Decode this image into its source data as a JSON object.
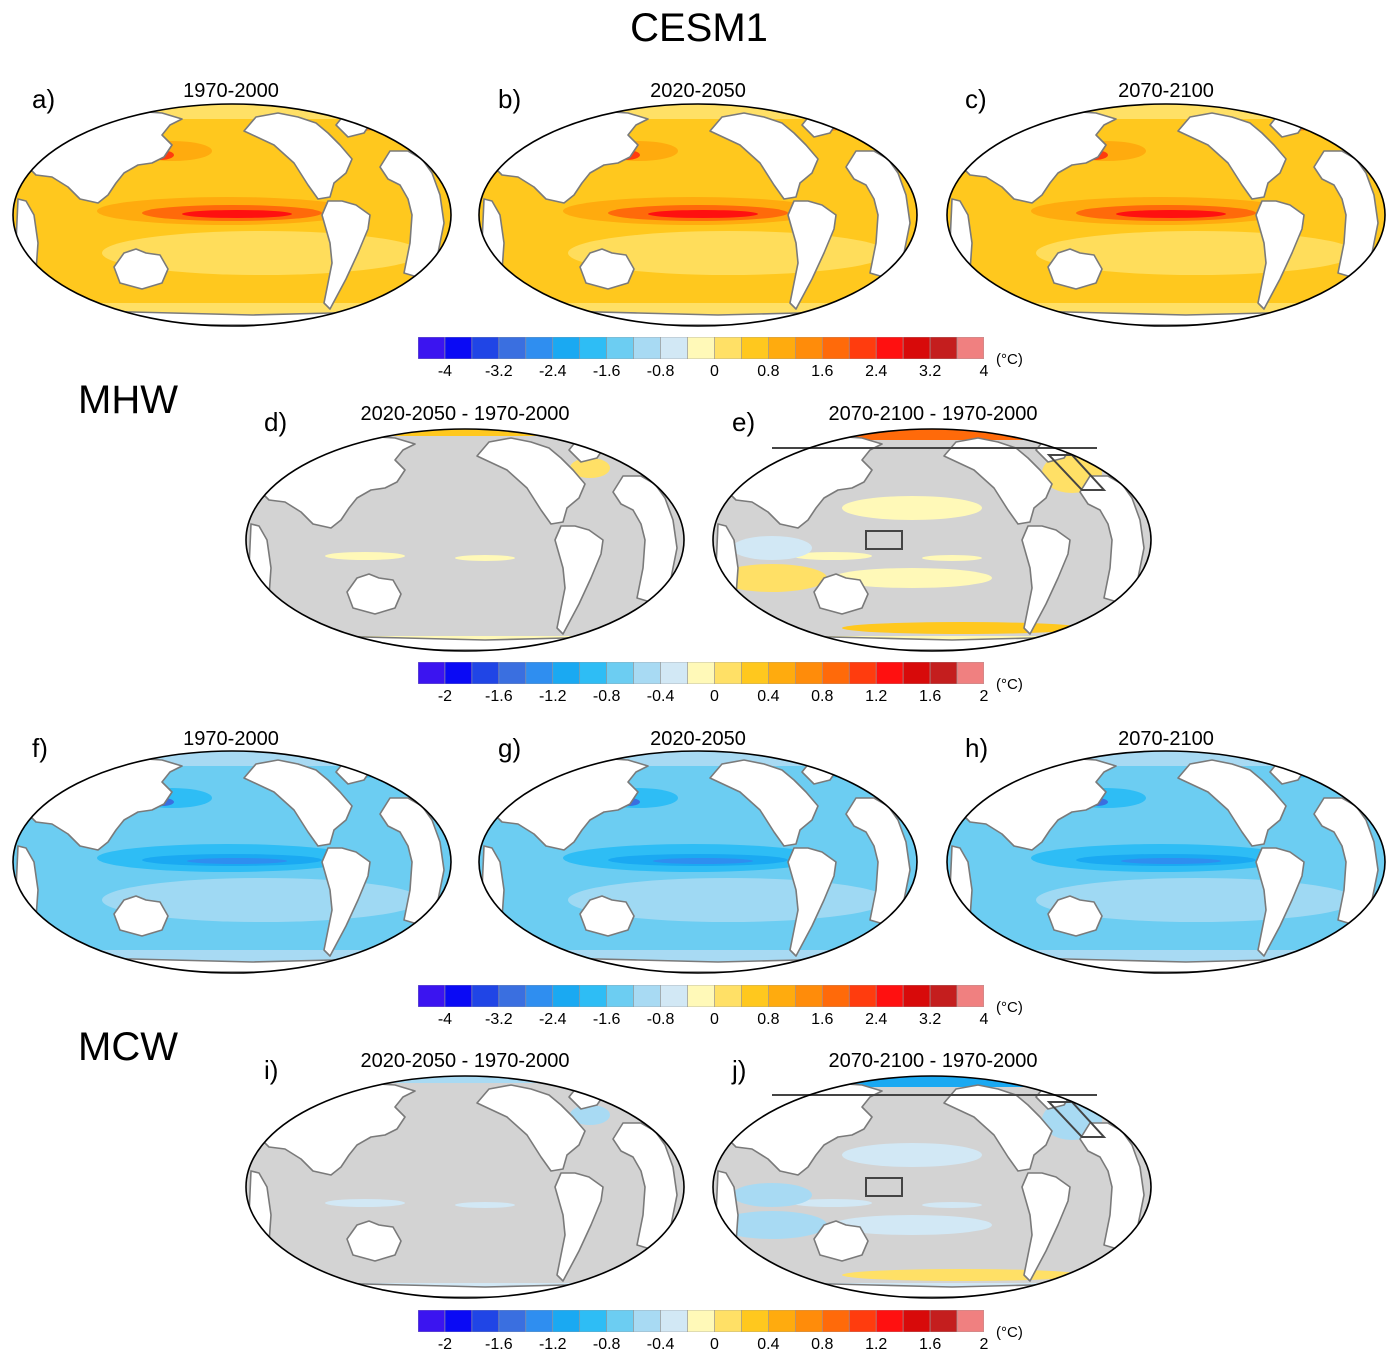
{
  "title": "CESM1",
  "sections": [
    {
      "id": "mhw",
      "label": "MHW"
    },
    {
      "id": "mcw",
      "label": "MCW"
    }
  ],
  "panels": [
    {
      "id": "a",
      "letter": "a)",
      "title": "1970-2000",
      "kind": "warm_abs",
      "boxes": false
    },
    {
      "id": "b",
      "letter": "b)",
      "title": "2020-2050",
      "kind": "warm_abs",
      "boxes": false
    },
    {
      "id": "c",
      "letter": "c)",
      "title": "2070-2100",
      "kind": "warm_abs",
      "boxes": false
    },
    {
      "id": "d",
      "letter": "d)",
      "title": "2020-2050 - 1970-2000",
      "kind": "warm_diff",
      "boxes": false
    },
    {
      "id": "e",
      "letter": "e)",
      "title": "2070-2100 - 1970-2000",
      "kind": "warm_diff2",
      "boxes": true
    },
    {
      "id": "f",
      "letter": "f)",
      "title": "1970-2000",
      "kind": "cold_abs",
      "boxes": false
    },
    {
      "id": "g",
      "letter": "g)",
      "title": "2020-2050",
      "kind": "cold_abs",
      "boxes": false
    },
    {
      "id": "h",
      "letter": "h)",
      "title": "2070-2100",
      "kind": "cold_abs",
      "boxes": false
    },
    {
      "id": "i",
      "letter": "i)",
      "title": "2020-2050 - 1970-2000",
      "kind": "cold_diff",
      "boxes": false
    },
    {
      "id": "j",
      "letter": "j)",
      "title": "2070-2100 - 1970-2000",
      "kind": "cold_diff2",
      "boxes": true
    }
  ],
  "colorbars": [
    {
      "id": "cb1",
      "ticks": [
        "-4",
        "-3.2",
        "-2.4",
        "-1.6",
        "-0.8",
        "0",
        "0.8",
        "1.6",
        "2.4",
        "3.2",
        "4"
      ],
      "unit": "(°C)"
    },
    {
      "id": "cb2",
      "ticks": [
        "-2",
        "-1.6",
        "-1.2",
        "-0.8",
        "-0.4",
        "0",
        "0.4",
        "0.8",
        "1.2",
        "1.6",
        "2"
      ],
      "unit": "(°C)"
    },
    {
      "id": "cb3",
      "ticks": [
        "-4",
        "-3.2",
        "-2.4",
        "-1.6",
        "-0.8",
        "0",
        "0.8",
        "1.6",
        "2.4",
        "3.2",
        "4"
      ],
      "unit": "(°C)"
    },
    {
      "id": "cb4",
      "ticks": [
        "-2",
        "-1.6",
        "-1.2",
        "-0.8",
        "-0.4",
        "0",
        "0.4",
        "0.8",
        "1.2",
        "1.6",
        "2"
      ],
      "unit": "(°C)"
    }
  ],
  "palette": [
    "#3b14f0",
    "#0a0af5",
    "#2045e6",
    "#3a6fe0",
    "#2f8ef0",
    "#1aa9f2",
    "#2ebdf5",
    "#6ccdf2",
    "#a8daf3",
    "#d2e8f5",
    "#fff9b8",
    "#ffe066",
    "#ffc81e",
    "#ffab0e",
    "#ff8c0a",
    "#ff6a0a",
    "#ff3c0e",
    "#ff1010",
    "#d80a0a",
    "#c41e1e",
    "#f08080"
  ],
  "colors": {
    "land": "#ffffff",
    "coast": "#7a7a7a",
    "no_change": "#d3d3d3",
    "box": "#444444"
  }
}
